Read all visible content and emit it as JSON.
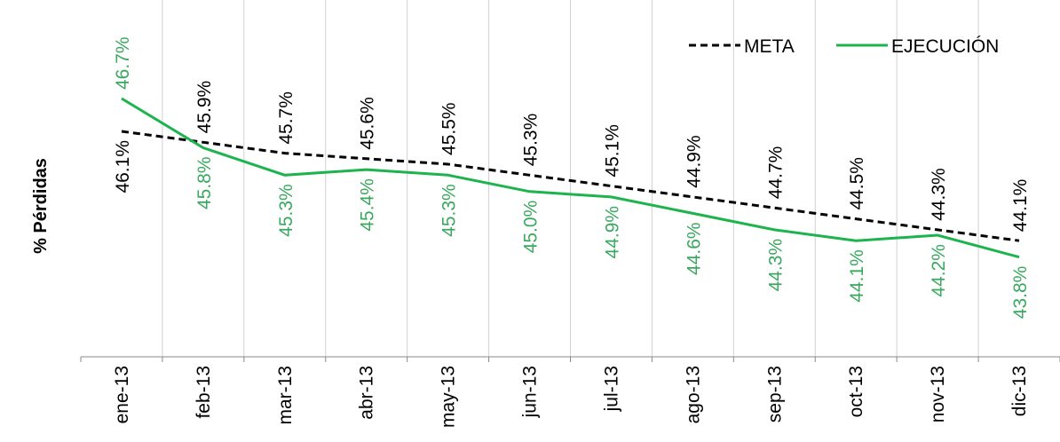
{
  "chart_data": {
    "type": "line",
    "title": "",
    "xlabel": "",
    "ylabel": "% Pérdidas",
    "categories": [
      "ene-13",
      "feb-13",
      "mar-13",
      "abr-13",
      "may-13",
      "jun-13",
      "jul-13",
      "ago-13",
      "sep-13",
      "oct-13",
      "nov-13",
      "dic-13"
    ],
    "series": [
      {
        "name": "META",
        "color": "#000000",
        "style": "dashed",
        "values": [
          46.1,
          45.9,
          45.7,
          45.6,
          45.5,
          45.3,
          45.1,
          44.9,
          44.7,
          44.5,
          44.3,
          44.1
        ],
        "labels": [
          "46.1%",
          "45.9%",
          "45.7%",
          "45.6%",
          "45.5%",
          "45.3%",
          "45.1%",
          "44.9%",
          "44.7%",
          "44.5%",
          "44.3%",
          "44.1%"
        ]
      },
      {
        "name": "EJECUCIÓN",
        "color": "#1db34d",
        "style": "solid",
        "values": [
          46.7,
          45.8,
          45.3,
          45.4,
          45.3,
          45.0,
          44.9,
          44.6,
          44.3,
          44.1,
          44.2,
          43.8
        ],
        "labels": [
          "46.7%",
          "45.8%",
          "45.3%",
          "45.4%",
          "45.3%",
          "45.0%",
          "44.9%",
          "44.6%",
          "44.3%",
          "44.1%",
          "44.2%",
          "43.8%"
        ]
      }
    ],
    "label_color_ejecucion": "#3aa85f",
    "grid": "vertical",
    "legend": "top-right"
  }
}
